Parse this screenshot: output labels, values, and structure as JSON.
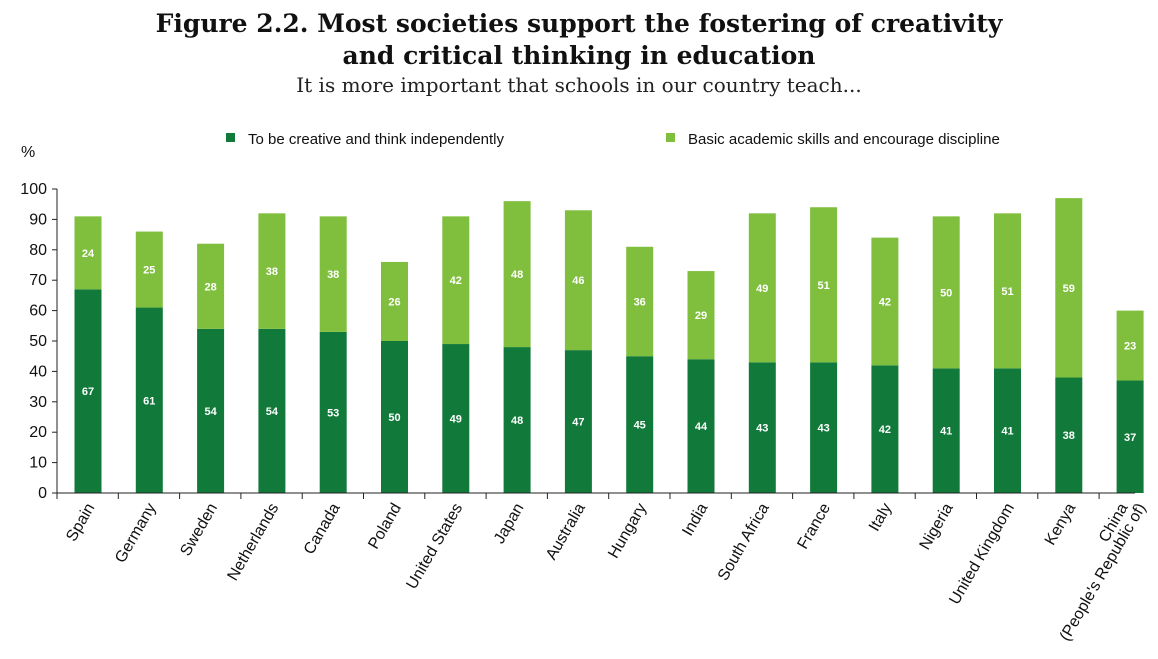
{
  "title_line1": "Figure 2.2. Most societies support the fostering of creativity",
  "title_line2": "and critical thinking in education",
  "subtitle": "It is more important that schools in our country teach...",
  "chart_data": {
    "type": "bar",
    "stacked": true,
    "ylabel": "%",
    "ylim": [
      0,
      100
    ],
    "yticks": [
      0,
      10,
      20,
      30,
      40,
      50,
      60,
      70,
      80,
      90,
      100
    ],
    "grid": false,
    "legend_position": "top",
    "categories": [
      "Spain",
      "Germany",
      "Sweden",
      "Netherlands",
      "Canada",
      "Poland",
      "United States",
      "Japan",
      "Australia",
      "Hungary",
      "India",
      "South Africa",
      "France",
      "Italy",
      "Nigeria",
      "United Kingdom",
      "Kenya",
      "China (People's Republic of)"
    ],
    "category_lines": [
      [
        "Spain"
      ],
      [
        "Germany"
      ],
      [
        "Sweden"
      ],
      [
        "Netherlands"
      ],
      [
        "Canada"
      ],
      [
        "Poland"
      ],
      [
        "United States"
      ],
      [
        "Japan"
      ],
      [
        "Australia"
      ],
      [
        "Hungary"
      ],
      [
        "India"
      ],
      [
        "South Africa"
      ],
      [
        "France"
      ],
      [
        "Italy"
      ],
      [
        "Nigeria"
      ],
      [
        "United Kingdom"
      ],
      [
        "Kenya"
      ],
      [
        "China",
        "(People's Republic of)"
      ]
    ],
    "series": [
      {
        "name": "To be creative and think independently",
        "color": "#117a3a",
        "values": [
          67,
          61,
          54,
          54,
          53,
          50,
          49,
          48,
          47,
          45,
          44,
          43,
          43,
          42,
          41,
          41,
          38,
          37
        ]
      },
      {
        "name": "Basic academic skills and encourage discipline",
        "color": "#7fbf3d",
        "values": [
          24,
          25,
          28,
          38,
          38,
          26,
          42,
          48,
          46,
          36,
          29,
          49,
          51,
          42,
          50,
          51,
          59,
          23
        ]
      }
    ]
  }
}
